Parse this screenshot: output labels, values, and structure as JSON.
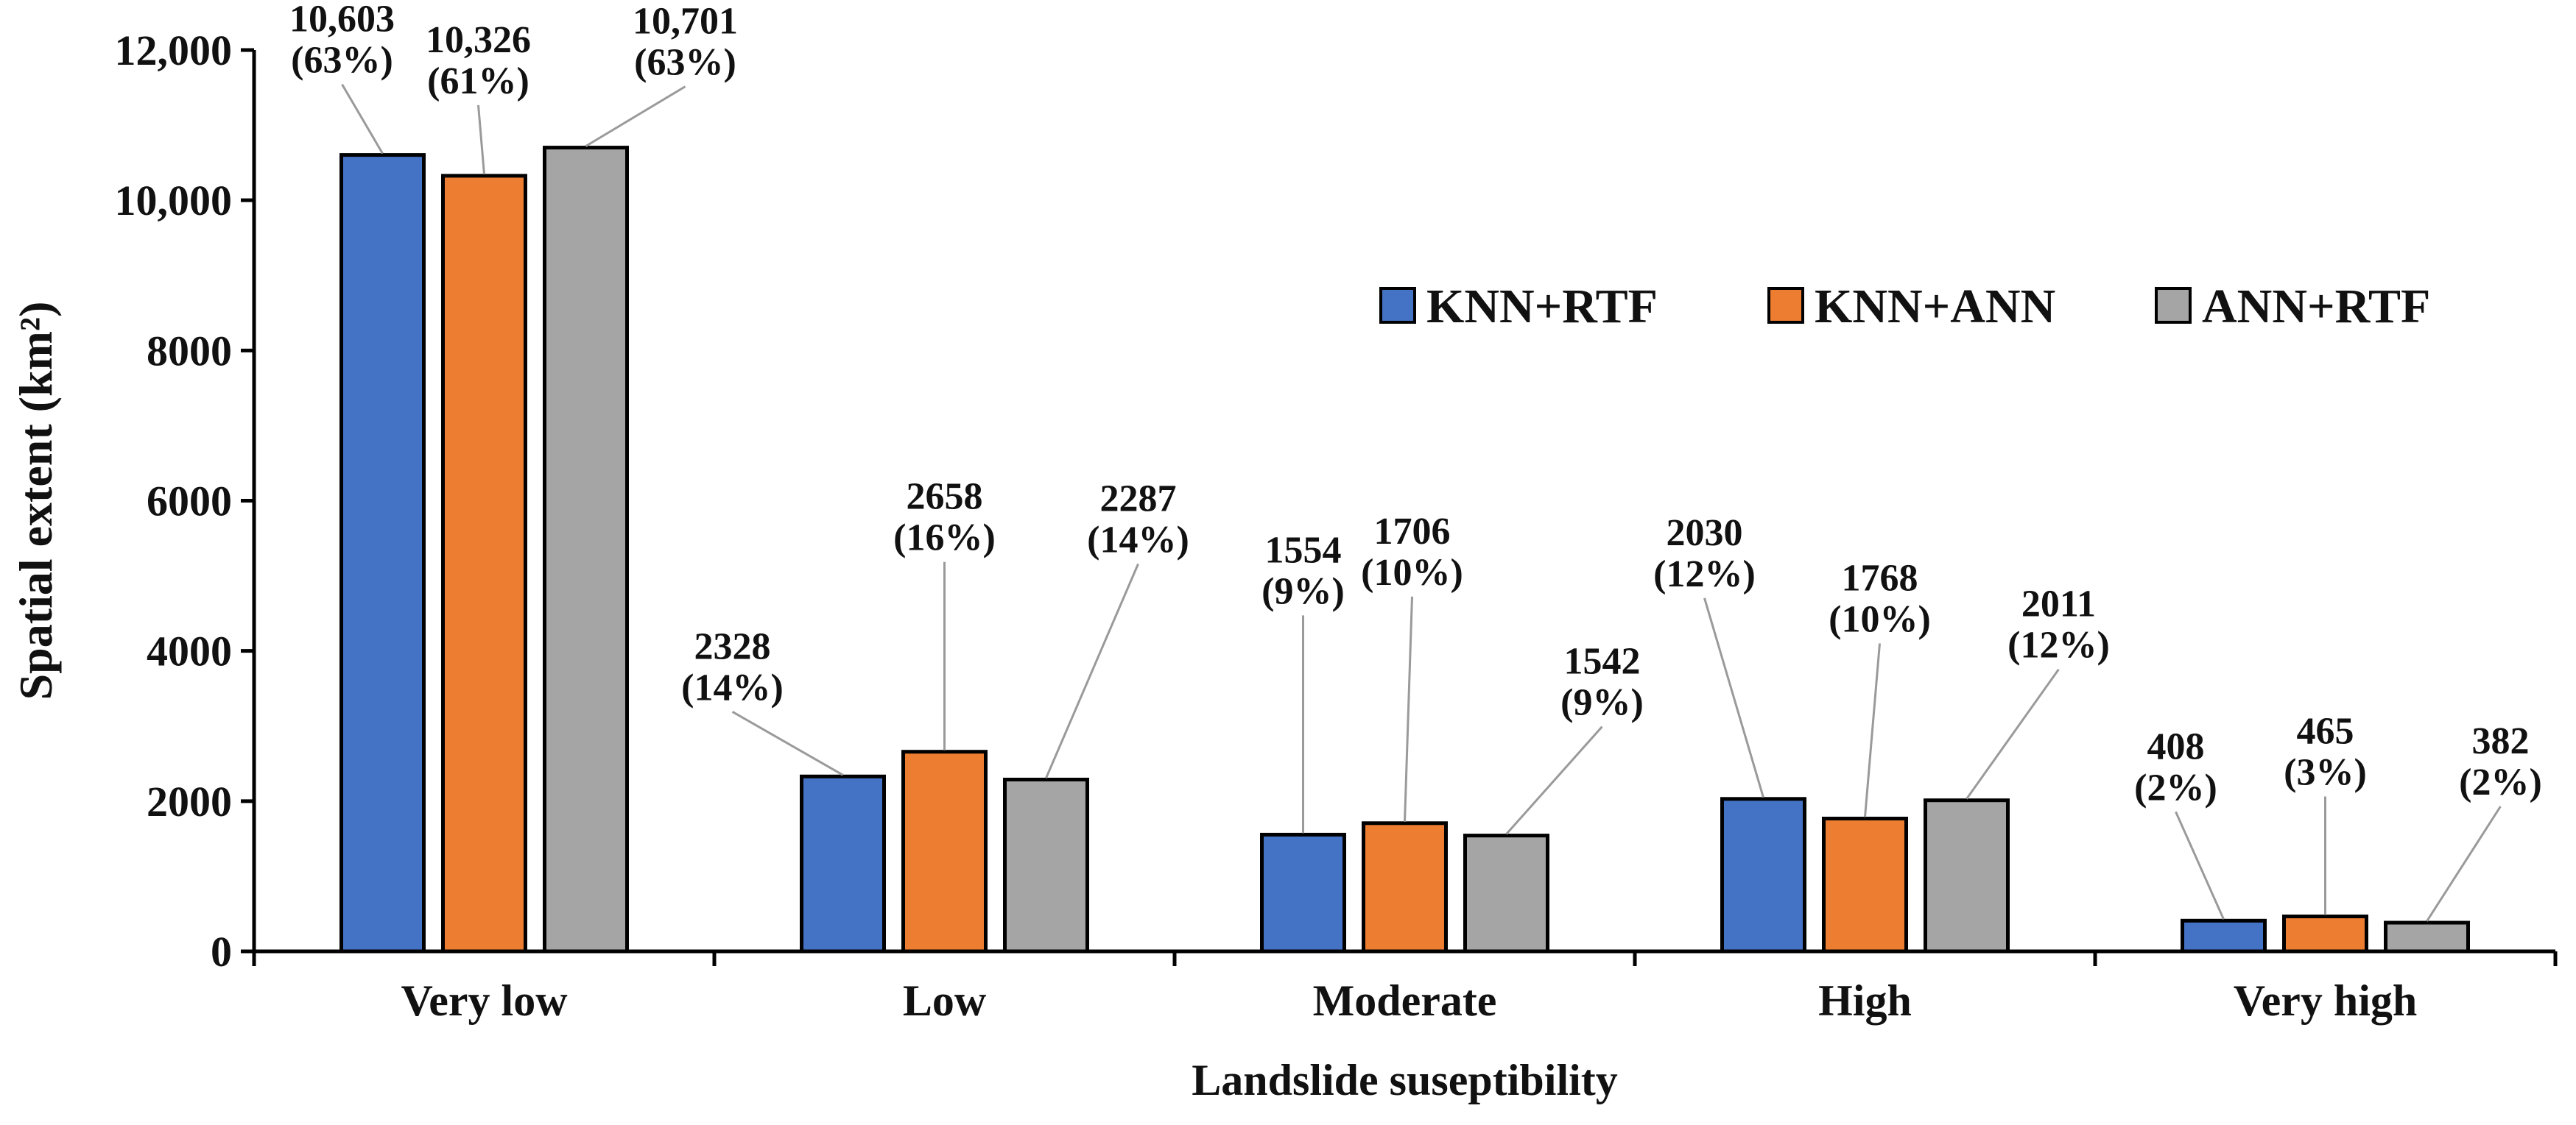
{
  "chart_data": {
    "type": "bar",
    "title": "",
    "xlabel": "Landslide suseptibility",
    "ylabel": "Spatial extent (km²)",
    "ylim": [
      0,
      12000
    ],
    "yticks": [
      0,
      2000,
      4000,
      6000,
      8000,
      10000,
      12000
    ],
    "ytick_labels": [
      "0",
      "2000",
      "4000",
      "6000",
      "8000",
      "10,000",
      "12,000"
    ],
    "grid": false,
    "legend_position": "top-right",
    "categories": [
      "Very low",
      "Low",
      "Moderate",
      "High",
      "Very high"
    ],
    "series": [
      {
        "name": "KNN+RTF",
        "color": "#4472C4",
        "values": [
          10603,
          2328,
          1554,
          2030,
          408
        ],
        "labels": [
          [
            "10,603",
            "(63%)"
          ],
          [
            "2328",
            "(14%)"
          ],
          [
            "1554",
            "(9%)"
          ],
          [
            "2030",
            "(12%)"
          ],
          [
            "408",
            "(2%)"
          ]
        ]
      },
      {
        "name": "KNN+ANN",
        "color": "#ED7D31",
        "values": [
          10326,
          2658,
          1706,
          1768,
          465
        ],
        "labels": [
          [
            "10,326",
            "(61%)"
          ],
          [
            "2658",
            "(16%)"
          ],
          [
            "1706",
            "(10%)"
          ],
          [
            "1768",
            "(10%)"
          ],
          [
            "465",
            "(3%)"
          ]
        ]
      },
      {
        "name": "ANN+RTF",
        "color": "#A5A5A5",
        "values": [
          10701,
          2287,
          1542,
          2011,
          382
        ],
        "labels": [
          [
            "10,701",
            "(63%)"
          ],
          [
            "2287",
            "(14%)"
          ],
          [
            "1542",
            "(9%)"
          ],
          [
            "2011",
            "(12%)"
          ],
          [
            "382",
            "(2%)"
          ]
        ]
      }
    ]
  }
}
